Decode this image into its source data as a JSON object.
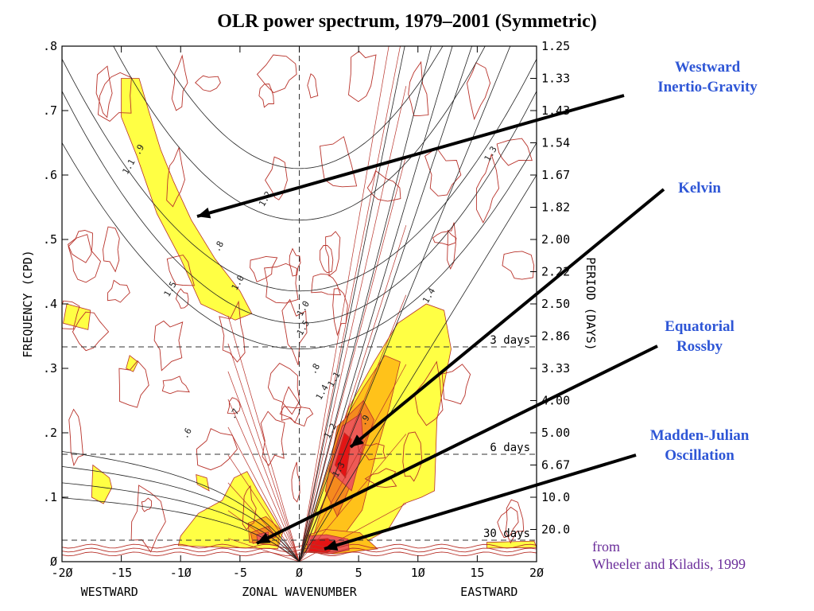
{
  "chart_data": {
    "type": "contour",
    "title": "OLR power spectrum, 1979–2001 (Symmetric)",
    "xlabel": "ZONAL WAVENUMBER",
    "xlabel_left": "WESTWARD",
    "xlabel_right": "EASTWARD",
    "ylabel_left": "FREQUENCY (CPD)",
    "ylabel_right": "PERIOD (DAYS)",
    "xlim": [
      -20,
      20
    ],
    "ylim": [
      0,
      0.8
    ],
    "xticks": [
      -20,
      -15,
      -10,
      -5,
      0,
      5,
      10,
      15,
      20
    ],
    "xtick_labels": [
      "-2Ø",
      "-15",
      "-1Ø",
      "-5",
      "Ø",
      "5",
      "1Ø",
      "15",
      "2Ø"
    ],
    "yticks": [
      0,
      0.1,
      0.2,
      0.3,
      0.4,
      0.5,
      0.6,
      0.7,
      0.8
    ],
    "ytick_labels": [
      "Ø",
      ".1",
      ".2",
      ".3",
      ".4",
      ".5",
      ".6",
      ".7",
      ".8"
    ],
    "period_ticks": [
      {
        "label": "1.25",
        "freq": 0.8
      },
      {
        "label": "1.33",
        "freq": 0.75
      },
      {
        "label": "1.43",
        "freq": 0.7
      },
      {
        "label": "1.54",
        "freq": 0.65
      },
      {
        "label": "1.67",
        "freq": 0.6
      },
      {
        "label": "1.82",
        "freq": 0.55
      },
      {
        "label": "2.00",
        "freq": 0.5
      },
      {
        "label": "2.22",
        "freq": 0.45
      },
      {
        "label": "2.50",
        "freq": 0.4
      },
      {
        "label": "2.86",
        "freq": 0.35
      },
      {
        "label": "3.33",
        "freq": 0.3
      },
      {
        "label": "4.00",
        "freq": 0.25
      },
      {
        "label": "5.00",
        "freq": 0.2
      },
      {
        "label": "6.67",
        "freq": 0.15
      },
      {
        "label": "10.0",
        "freq": 0.1
      },
      {
        "label": "20.0",
        "freq": 0.05
      }
    ],
    "period_lines": [
      {
        "label": "3 days",
        "freq": 0.3333
      },
      {
        "label": "6 days",
        "freq": 0.1667
      },
      {
        "label": "30 days",
        "freq": 0.0333
      }
    ],
    "contour_labels": [
      "1.1",
      "1.2",
      "1.3",
      "1.4",
      "1.5",
      "1.0",
      ".9",
      ".8",
      ".7",
      ".6"
    ],
    "colors": {
      "level1": "#ffff44",
      "level2": "#ffc21a",
      "level3": "#f58a1e",
      "level4": "#ee5a55",
      "level5": "#e41414",
      "contour": "#b8322a",
      "axis": "#000000",
      "annotation": "#2e56d6",
      "credit": "#6a2d9a"
    },
    "grid": false
  },
  "annotations": [
    {
      "line1": "Westward",
      "line2": "Inertio-Gravity"
    },
    {
      "line1": "Kelvin",
      "line2": ""
    },
    {
      "line1": "Equatorial",
      "line2": "Rossby"
    },
    {
      "line1": "Madden-Julian",
      "line2": "Oscillation"
    }
  ],
  "credit": {
    "line1": "from",
    "line2": "Wheeler and Kiladis, 1999"
  }
}
